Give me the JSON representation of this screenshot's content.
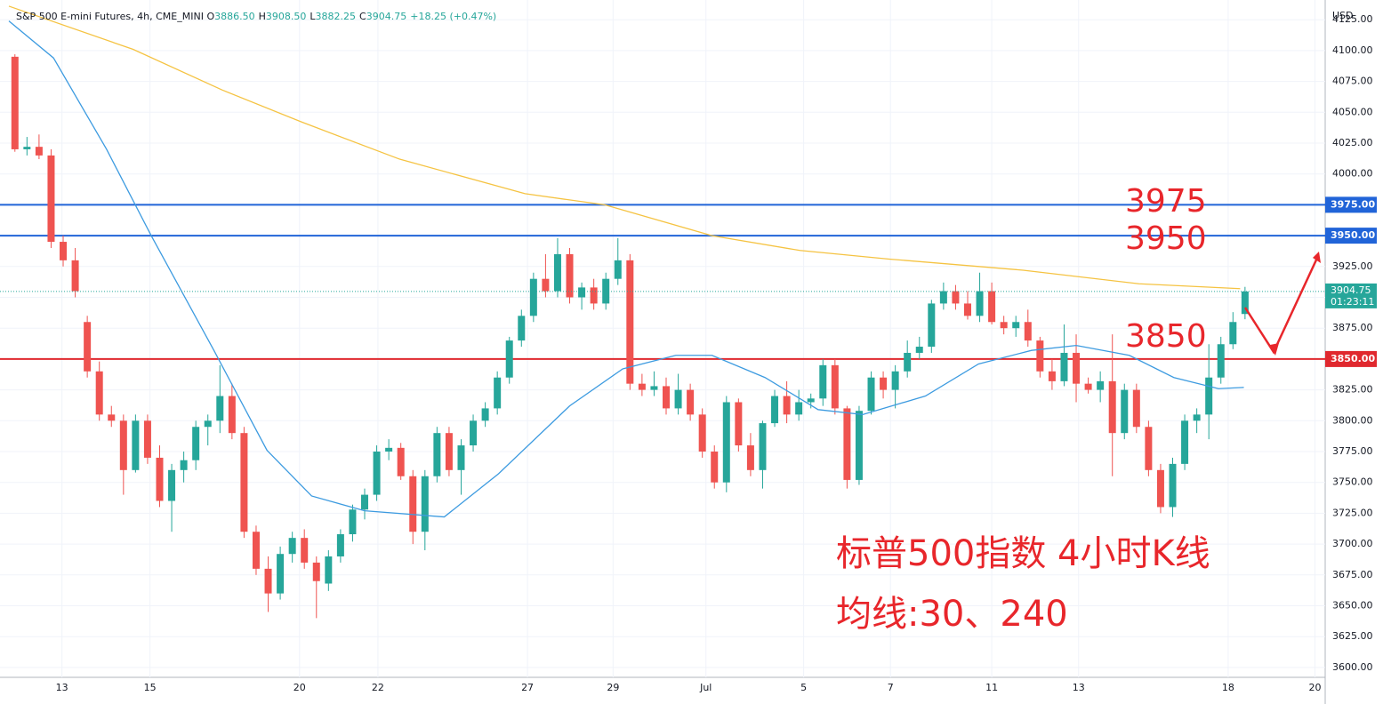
{
  "chart_data": {
    "type": "candlestick",
    "header": {
      "symbol": "S&P 500 E-mini Futures, 4h, CME_MINI",
      "fields": [
        {
          "label": "O",
          "value": "3886.50"
        },
        {
          "label": "H",
          "value": "3908.50"
        },
        {
          "label": "L",
          "value": "3882.25"
        },
        {
          "label": "C",
          "value": "3904.75"
        }
      ],
      "change": "+18.25 (+0.47%)"
    },
    "currency": "USD",
    "up_color": "#26a69a",
    "down_color": "#ef5350",
    "xlim": [
      0,
      109
    ],
    "xticks": [
      {
        "value": 4.4,
        "label": "13"
      },
      {
        "value": 11.7,
        "label": "15"
      },
      {
        "value": 24.1,
        "label": "20"
      },
      {
        "value": 30.6,
        "label": "22"
      },
      {
        "value": 43.0,
        "label": "27"
      },
      {
        "value": 50.1,
        "label": "29"
      },
      {
        "value": 57.8,
        "label": "Jul"
      },
      {
        "value": 65.9,
        "label": "5"
      },
      {
        "value": 73.1,
        "label": "7"
      },
      {
        "value": 81.5,
        "label": "11"
      },
      {
        "value": 88.7,
        "label": "13"
      },
      {
        "value": 101.1,
        "label": "18"
      },
      {
        "value": 108.3,
        "label": "20"
      }
    ],
    "ylim": [
      3592,
      4141
    ],
    "yticks": [
      {
        "value": 3600,
        "label": "3600.00"
      },
      {
        "value": 3625,
        "label": "3625.00"
      },
      {
        "value": 3650,
        "label": "3650.00"
      },
      {
        "value": 3675,
        "label": "3675.00"
      },
      {
        "value": 3700,
        "label": "3700.00"
      },
      {
        "value": 3725,
        "label": "3725.00"
      },
      {
        "value": 3750,
        "label": "3750.00"
      },
      {
        "value": 3775,
        "label": "3775.00"
      },
      {
        "value": 3800,
        "label": "3800.00"
      },
      {
        "value": 3825,
        "label": "3825.00"
      },
      {
        "value": 3850,
        "label": "3850.00"
      },
      {
        "value": 3875,
        "label": "3875.00"
      },
      {
        "value": 3900,
        "label": "3900.00"
      },
      {
        "value": 3925,
        "label": "3925.00"
      },
      {
        "value": 3950,
        "label": "3950.00"
      },
      {
        "value": 3975,
        "label": "3975.00"
      },
      {
        "value": 4000,
        "label": "4000.00"
      },
      {
        "value": 4025,
        "label": "4025.00"
      },
      {
        "value": 4050,
        "label": "4050.00"
      },
      {
        "value": 4075,
        "label": "4075.00"
      },
      {
        "value": 4100,
        "label": "4100.00"
      },
      {
        "value": 4125,
        "label": "4125.00"
      }
    ],
    "grid": true,
    "candles": [
      [
        4095,
        4097,
        4018,
        4020
      ],
      [
        4020,
        4030,
        4015,
        4022
      ],
      [
        4022,
        4032,
        4012,
        4015
      ],
      [
        4015,
        4020,
        3940,
        3945
      ],
      [
        3945,
        3950,
        3925,
        3930
      ],
      [
        3930,
        3940,
        3900,
        3905
      ],
      [
        3880,
        3885,
        3835,
        3840
      ],
      [
        3840,
        3848,
        3800,
        3805
      ],
      [
        3805,
        3812,
        3795,
        3800
      ],
      [
        3800,
        3805,
        3740,
        3760
      ],
      [
        3760,
        3805,
        3758,
        3800
      ],
      [
        3800,
        3805,
        3765,
        3770
      ],
      [
        3770,
        3780,
        3730,
        3735
      ],
      [
        3735,
        3765,
        3710,
        3760
      ],
      [
        3760,
        3775,
        3750,
        3768
      ],
      [
        3768,
        3800,
        3760,
        3795
      ],
      [
        3795,
        3805,
        3780,
        3800
      ],
      [
        3800,
        3845,
        3790,
        3820
      ],
      [
        3820,
        3830,
        3785,
        3790
      ],
      [
        3790,
        3795,
        3705,
        3710
      ],
      [
        3710,
        3715,
        3675,
        3680
      ],
      [
        3680,
        3690,
        3645,
        3660
      ],
      [
        3660,
        3698,
        3655,
        3692
      ],
      [
        3692,
        3710,
        3685,
        3705
      ],
      [
        3705,
        3712,
        3680,
        3685
      ],
      [
        3685,
        3690,
        3640,
        3670
      ],
      [
        3668,
        3695,
        3662,
        3690
      ],
      [
        3690,
        3712,
        3685,
        3708
      ],
      [
        3708,
        3732,
        3702,
        3728
      ],
      [
        3728,
        3745,
        3720,
        3740
      ],
      [
        3740,
        3780,
        3735,
        3775
      ],
      [
        3775,
        3785,
        3768,
        3778
      ],
      [
        3778,
        3782,
        3752,
        3755
      ],
      [
        3755,
        3760,
        3700,
        3710
      ],
      [
        3710,
        3760,
        3695,
        3755
      ],
      [
        3755,
        3795,
        3750,
        3790
      ],
      [
        3790,
        3795,
        3755,
        3760
      ],
      [
        3760,
        3785,
        3740,
        3780
      ],
      [
        3780,
        3805,
        3775,
        3800
      ],
      [
        3800,
        3815,
        3795,
        3810
      ],
      [
        3810,
        3840,
        3805,
        3835
      ],
      [
        3835,
        3868,
        3830,
        3865
      ],
      [
        3865,
        3890,
        3860,
        3885
      ],
      [
        3885,
        3920,
        3880,
        3915
      ],
      [
        3915,
        3935,
        3900,
        3905
      ],
      [
        3905,
        3948,
        3900,
        3935
      ],
      [
        3935,
        3940,
        3895,
        3900
      ],
      [
        3900,
        3912,
        3890,
        3908
      ],
      [
        3908,
        3915,
        3890,
        3895
      ],
      [
        3895,
        3920,
        3890,
        3915
      ],
      [
        3915,
        3948,
        3910,
        3930
      ],
      [
        3930,
        3935,
        3825,
        3830
      ],
      [
        3830,
        3838,
        3820,
        3825
      ],
      [
        3825,
        3840,
        3820,
        3828
      ],
      [
        3828,
        3835,
        3805,
        3810
      ],
      [
        3810,
        3838,
        3805,
        3825
      ],
      [
        3825,
        3830,
        3800,
        3805
      ],
      [
        3805,
        3810,
        3770,
        3775
      ],
      [
        3775,
        3780,
        3745,
        3750
      ],
      [
        3750,
        3820,
        3742,
        3815
      ],
      [
        3815,
        3818,
        3775,
        3780
      ],
      [
        3780,
        3790,
        3755,
        3760
      ],
      [
        3760,
        3800,
        3745,
        3798
      ],
      [
        3798,
        3825,
        3795,
        3820
      ],
      [
        3820,
        3832,
        3798,
        3805
      ],
      [
        3805,
        3825,
        3800,
        3815
      ],
      [
        3815,
        3822,
        3810,
        3818
      ],
      [
        3818,
        3850,
        3812,
        3845
      ],
      [
        3845,
        3850,
        3805,
        3810
      ],
      [
        3810,
        3812,
        3745,
        3752
      ],
      [
        3752,
        3812,
        3748,
        3808
      ],
      [
        3808,
        3840,
        3805,
        3835
      ],
      [
        3835,
        3840,
        3818,
        3825
      ],
      [
        3825,
        3845,
        3810,
        3840
      ],
      [
        3840,
        3865,
        3835,
        3855
      ],
      [
        3855,
        3868,
        3850,
        3860
      ],
      [
        3860,
        3898,
        3855,
        3895
      ],
      [
        3895,
        3912,
        3890,
        3905
      ],
      [
        3905,
        3910,
        3890,
        3895
      ],
      [
        3895,
        3905,
        3882,
        3885
      ],
      [
        3885,
        3920,
        3880,
        3905
      ],
      [
        3905,
        3912,
        3878,
        3880
      ],
      [
        3880,
        3885,
        3870,
        3875
      ],
      [
        3875,
        3885,
        3868,
        3880
      ],
      [
        3880,
        3890,
        3860,
        3865
      ],
      [
        3865,
        3868,
        3835,
        3840
      ],
      [
        3840,
        3850,
        3825,
        3832
      ],
      [
        3832,
        3878,
        3828,
        3855
      ],
      [
        3855,
        3870,
        3815,
        3830
      ],
      [
        3830,
        3835,
        3822,
        3825
      ],
      [
        3825,
        3840,
        3815,
        3832
      ],
      [
        3832,
        3870,
        3755,
        3790
      ],
      [
        3790,
        3830,
        3785,
        3825
      ],
      [
        3825,
        3830,
        3790,
        3795
      ],
      [
        3795,
        3800,
        3755,
        3760
      ],
      [
        3760,
        3765,
        3725,
        3730
      ],
      [
        3730,
        3770,
        3722,
        3765
      ],
      [
        3765,
        3805,
        3760,
        3800
      ],
      [
        3800,
        3810,
        3790,
        3805
      ],
      [
        3805,
        3862,
        3785,
        3835
      ],
      [
        3835,
        3868,
        3830,
        3862
      ],
      [
        3862,
        3888,
        3858,
        3880
      ],
      [
        3886.5,
        3908.5,
        3882.25,
        3904.75
      ]
    ],
    "series": [
      {
        "name": "MA30",
        "color": "#3d9be0",
        "x": [
          0,
          3.7,
          8.1,
          11.8,
          17,
          21.4,
          25.1,
          29.5,
          36.1,
          40.6,
          46.5,
          50.9,
          55.3,
          58.3,
          62.7,
          67.1,
          70.8,
          76,
          80.4,
          84.8,
          88.5,
          92.9,
          96.6,
          100.3,
          102.4
        ],
        "values": [
          4124,
          4094,
          4020,
          3950,
          3857,
          3776,
          3739,
          3727,
          3722,
          3757,
          3812,
          3842,
          3853,
          3853,
          3835,
          3809,
          3805,
          3820,
          3846,
          3857,
          3861,
          3853,
          3835,
          3826,
          3827
        ]
      },
      {
        "name": "MA240",
        "color": "#f5c342",
        "x": [
          0,
          10.3,
          17.7,
          24.3,
          32.4,
          42.8,
          49.4,
          58.3,
          65.6,
          73,
          84.1,
          93.7,
          102.1
        ],
        "values": [
          4136,
          4101,
          4068,
          4042,
          4012,
          3984,
          3975,
          3950,
          3938,
          3931,
          3922,
          3911,
          3907
        ]
      }
    ],
    "levels": [
      {
        "value": 3975,
        "label": "3975.00",
        "color": "#2164d8"
      },
      {
        "value": 3950,
        "label": "3950.00",
        "color": "#2164d8"
      },
      {
        "value": 3850,
        "label": "3850.00",
        "color": "#e0282e"
      }
    ],
    "last_price": {
      "value": 3904.75,
      "label": "3904.75",
      "countdown": "01:23:11"
    },
    "annotations": [
      "3975",
      "3950",
      "3850"
    ],
    "caption": [
      "标普500指数 4小时K线",
      "均线:30、240"
    ]
  }
}
